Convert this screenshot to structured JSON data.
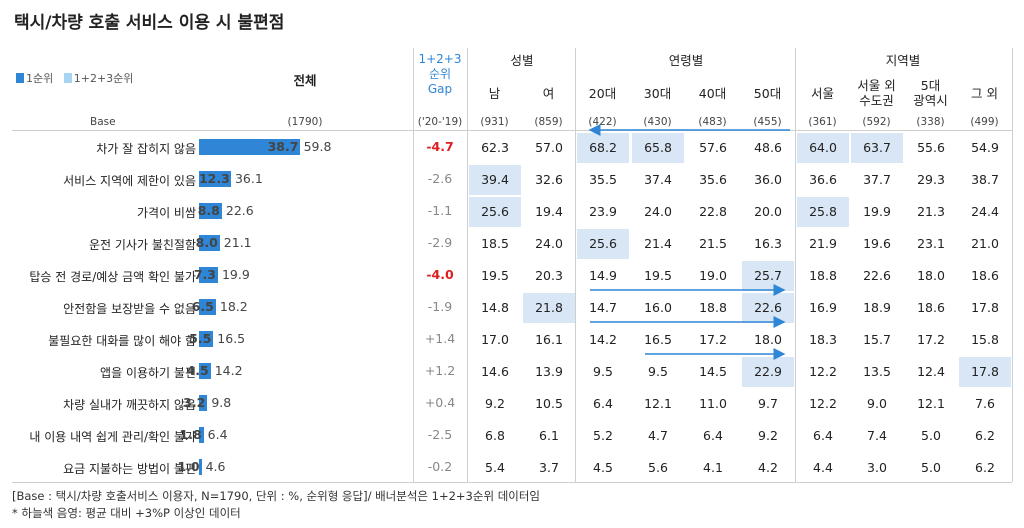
{
  "title": "택시/차량 호출 서비스 이용 시 불편점",
  "legend": {
    "rank1": "1순위",
    "rank123": "1+2+3순위",
    "rank1_color": "#2f86d6",
    "rank123_color": "#a8d4f4"
  },
  "headers": {
    "total": "전체",
    "gap_line1": "1+2+3",
    "gap_line2": "순위",
    "gap_line3": "Gap",
    "gender": "성별",
    "age": "연령별",
    "region": "지역별",
    "columns": [
      "남",
      "여",
      "20대",
      "30대",
      "40대",
      "50대",
      "서울",
      "서울 외 수도권",
      "5대 광역시",
      "그 외"
    ]
  },
  "base": {
    "label": "Base",
    "total": "(1790)",
    "gap": "('20-'19)",
    "columns": [
      "(931)",
      "(859)",
      "(422)",
      "(430)",
      "(483)",
      "(455)",
      "(361)",
      "(592)",
      "(338)",
      "(499)"
    ]
  },
  "chart_data": {
    "type": "bar",
    "title": "택시/차량 호출 서비스 이용 시 불편점",
    "categories": [
      "차가 잘 잡히지 않음",
      "서비스 지역에 제한이 있음",
      "가격이 비쌈",
      "운전 기사가 불친절함",
      "탑승 전 경로/예상 금액 확인 불가",
      "안전함을 보장받을 수 없음",
      "불필요한 대화를 많이 해야 함",
      "앱을 이용하기 불편",
      "차량 실내가 깨끗하지 않음",
      "내 이용 내역 쉽게 관리/확인 불가",
      "요금 지불하는 방법이 불편"
    ],
    "series": [
      {
        "name": "1순위",
        "values": [
          38.7,
          12.3,
          8.8,
          8.0,
          7.3,
          6.5,
          5.5,
          4.5,
          3.2,
          1.8,
          1.0
        ]
      },
      {
        "name": "1+2+3순위",
        "values": [
          59.8,
          36.1,
          22.6,
          21.1,
          19.9,
          18.2,
          16.5,
          14.2,
          9.8,
          6.4,
          4.6
        ]
      }
    ],
    "xlim": [
      0,
      70
    ],
    "gap": [
      "-4.7",
      "-2.6",
      "-1.1",
      "-2.9",
      "-4.0",
      "-1.9",
      "+1.4",
      "+1.2",
      "+0.4",
      "-2.5",
      "-0.2"
    ],
    "gap_highlight": [
      true,
      false,
      false,
      false,
      true,
      false,
      false,
      false,
      false,
      false,
      false
    ],
    "table": [
      [
        "62.3",
        "57.0",
        "68.2",
        "65.8",
        "57.6",
        "48.6",
        "64.0",
        "63.7",
        "55.6",
        "54.9"
      ],
      [
        "39.4",
        "32.6",
        "35.5",
        "37.4",
        "35.6",
        "36.0",
        "36.6",
        "37.7",
        "29.3",
        "38.7"
      ],
      [
        "25.6",
        "19.4",
        "23.9",
        "24.0",
        "22.8",
        "20.0",
        "25.8",
        "19.9",
        "21.3",
        "24.4"
      ],
      [
        "18.5",
        "24.0",
        "25.6",
        "21.4",
        "21.5",
        "16.3",
        "21.9",
        "19.6",
        "23.1",
        "21.0"
      ],
      [
        "19.5",
        "20.3",
        "14.9",
        "19.5",
        "19.0",
        "25.7",
        "18.8",
        "22.6",
        "18.0",
        "18.6"
      ],
      [
        "14.8",
        "21.8",
        "14.7",
        "16.0",
        "18.8",
        "22.6",
        "16.9",
        "18.9",
        "18.6",
        "17.8"
      ],
      [
        "17.0",
        "16.1",
        "14.2",
        "16.5",
        "17.2",
        "18.0",
        "18.3",
        "15.7",
        "17.2",
        "15.8"
      ],
      [
        "14.6",
        "13.9",
        "9.5",
        "9.5",
        "14.5",
        "22.9",
        "12.2",
        "13.5",
        "12.4",
        "17.8"
      ],
      [
        "9.2",
        "10.5",
        "6.4",
        "12.1",
        "11.0",
        "9.7",
        "12.2",
        "9.0",
        "12.1",
        "7.6"
      ],
      [
        "6.8",
        "6.1",
        "5.2",
        "4.7",
        "6.4",
        "9.2",
        "6.4",
        "7.4",
        "5.0",
        "6.2"
      ],
      [
        "5.4",
        "3.7",
        "4.5",
        "5.6",
        "4.1",
        "4.2",
        "4.4",
        "3.0",
        "5.0",
        "6.2"
      ]
    ],
    "highlighted": [
      [
        false,
        false,
        true,
        true,
        false,
        false,
        true,
        true,
        false,
        false
      ],
      [
        true,
        false,
        false,
        false,
        false,
        false,
        false,
        false,
        false,
        false
      ],
      [
        true,
        false,
        false,
        false,
        false,
        false,
        true,
        false,
        false,
        false
      ],
      [
        false,
        false,
        true,
        false,
        false,
        false,
        false,
        false,
        false,
        false
      ],
      [
        false,
        false,
        false,
        false,
        false,
        true,
        false,
        false,
        false,
        false
      ],
      [
        false,
        true,
        false,
        false,
        false,
        true,
        false,
        false,
        false,
        false
      ],
      [
        false,
        false,
        false,
        false,
        false,
        false,
        false,
        false,
        false,
        false
      ],
      [
        false,
        false,
        false,
        false,
        false,
        true,
        false,
        false,
        false,
        true
      ],
      [
        false,
        false,
        false,
        false,
        false,
        false,
        false,
        false,
        false,
        false
      ],
      [
        false,
        false,
        false,
        false,
        false,
        false,
        false,
        false,
        false,
        false
      ],
      [
        false,
        false,
        false,
        false,
        false,
        false,
        false,
        false,
        false,
        false
      ]
    ],
    "trend_arrows": [
      {
        "row": 0,
        "from_col": 5,
        "to_col": 2
      },
      {
        "row": 5,
        "from_col": 2,
        "to_col": 5
      },
      {
        "row": 6,
        "from_col": 2,
        "to_col": 5
      },
      {
        "row": 7,
        "from_col": 3,
        "to_col": 5
      }
    ],
    "highlight_color": "#d9e6f5",
    "gap_red_color": "#e02020"
  },
  "footnotes": {
    "line1": "[Base : 택시/차량 호출서비스 이용자, N=1790, 단위 : %, 순위형 응답]/ 배너분석은 1+2+3순위 데이터임",
    "line2": "* 하늘색 음영: 평균 대비 +3%P 이상인 데이터"
  }
}
